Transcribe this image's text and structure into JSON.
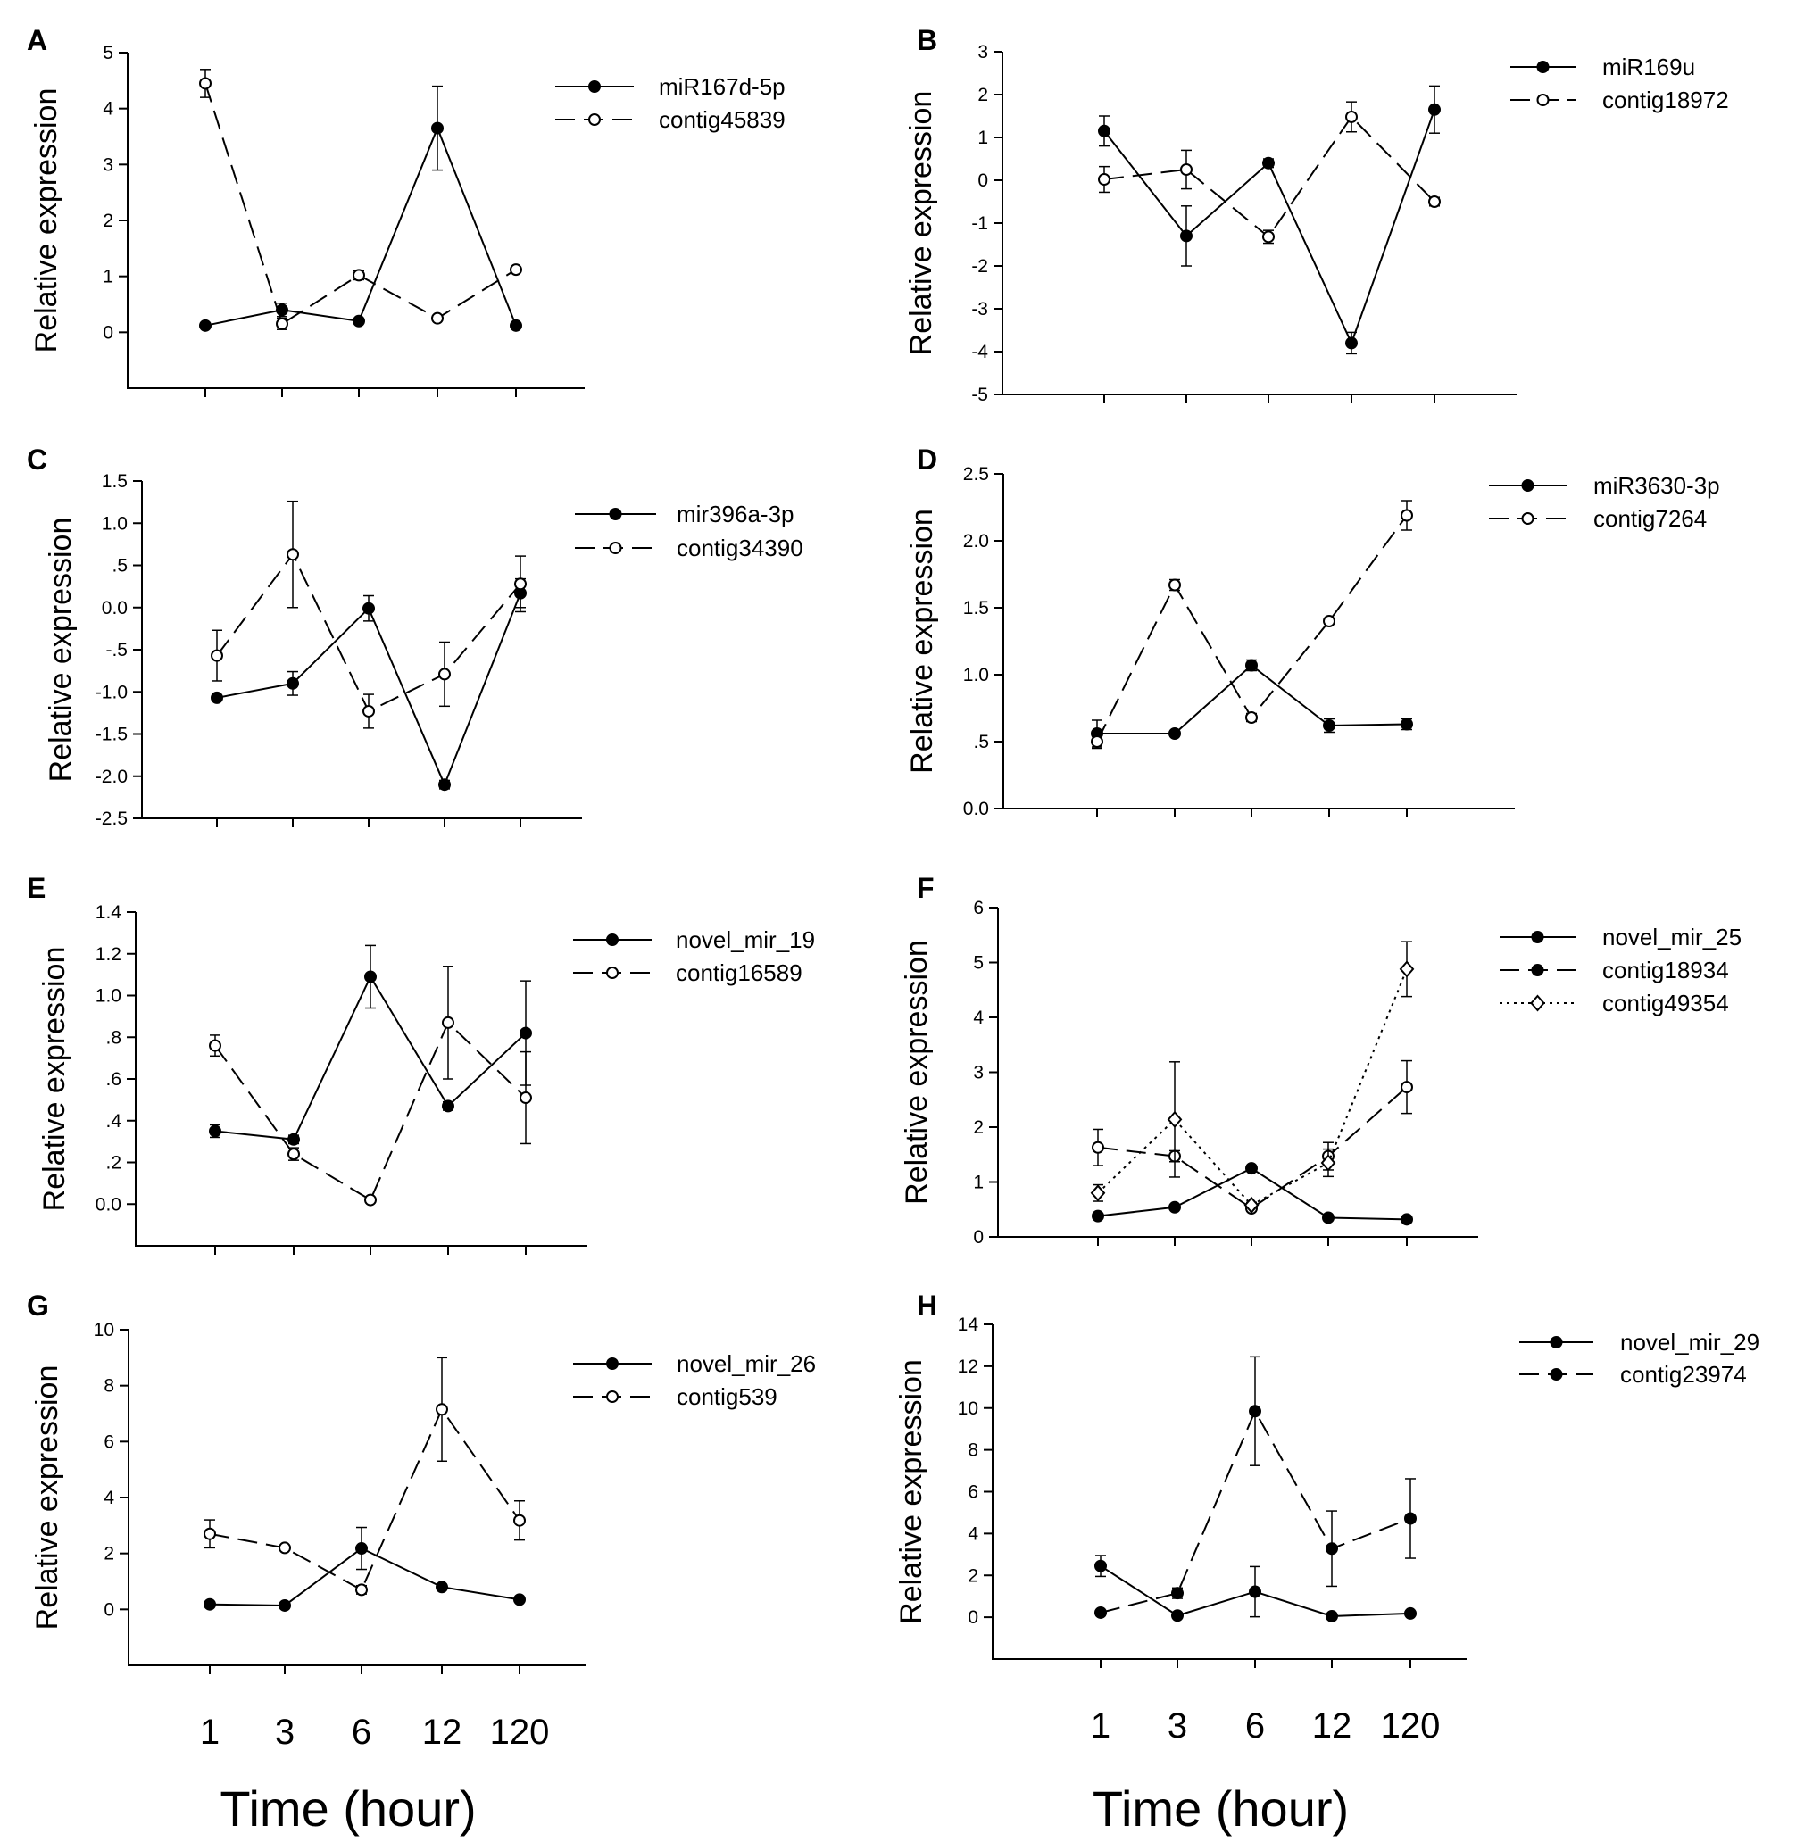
{
  "time_categories": [
    "1",
    "3",
    "6",
    "12",
    "120"
  ],
  "ylabel": "Relative expression",
  "xlabel": "Time (hour)",
  "colors": {
    "ink": "#000000",
    "background": "#ffffff"
  },
  "chart_data": [
    {
      "panel": "A",
      "type": "line",
      "categories": [
        "1",
        "3",
        "6",
        "12",
        "120"
      ],
      "ylabel": "Relative expression",
      "ylim": [
        -1,
        5
      ],
      "yticks": [
        0,
        1,
        2,
        3,
        4,
        5
      ],
      "ytick_labels": [
        "0",
        "1",
        "2",
        "3",
        "4",
        "5"
      ],
      "series": [
        {
          "name": "miR167d-5p",
          "line": "solid",
          "marker": "filled-circle",
          "values": [
            0.12,
            0.4,
            0.2,
            3.65,
            0.12
          ],
          "errors": [
            0,
            0.12,
            0,
            0.75,
            0
          ]
        },
        {
          "name": "contig45839",
          "line": "dashed",
          "marker": "open-circle",
          "values": [
            4.45,
            0.15,
            1.02,
            0.25,
            1.12
          ],
          "errors": [
            0.25,
            0.1,
            0.08,
            0,
            0
          ]
        }
      ]
    },
    {
      "panel": "B",
      "type": "line",
      "categories": [
        "1",
        "3",
        "6",
        "12",
        "120"
      ],
      "ylabel": "Relative expression",
      "ylim": [
        -5,
        3
      ],
      "yticks": [
        -5,
        -4,
        -3,
        -2,
        -1,
        0,
        1,
        2,
        3
      ],
      "ytick_labels": [
        "-5",
        "-4",
        "-3",
        "-2",
        "-1",
        "0",
        "1",
        "2",
        "3"
      ],
      "series": [
        {
          "name": "miR169u",
          "line": "solid",
          "marker": "filled-circle",
          "values": [
            1.15,
            -1.3,
            0.4,
            -3.8,
            1.65
          ],
          "errors": [
            0.35,
            0.7,
            0.1,
            0.25,
            0.55
          ]
        },
        {
          "name": "contig18972",
          "line": "dashed",
          "marker": "open-circle",
          "values": [
            0.02,
            0.25,
            -1.32,
            1.48,
            -0.5
          ],
          "errors": [
            0.3,
            0.45,
            0.15,
            0.35,
            0.1
          ]
        }
      ]
    },
    {
      "panel": "C",
      "type": "line",
      "categories": [
        "1",
        "3",
        "6",
        "12",
        "120"
      ],
      "ylabel": "Relative expression",
      "ylim": [
        -2.5,
        1.5
      ],
      "yticks": [
        -2.5,
        -2.0,
        -1.5,
        -1.0,
        -0.5,
        0.0,
        0.5,
        1.0,
        1.5
      ],
      "ytick_labels": [
        "-2.5",
        "-2.0",
        "-1.5",
        "-1.0",
        "-.5",
        "0.0",
        ".5",
        "1.0",
        "1.5"
      ],
      "series": [
        {
          "name": "mir396a-3p",
          "line": "solid",
          "marker": "filled-circle",
          "values": [
            -1.07,
            -0.9,
            -0.01,
            -2.1,
            0.17
          ],
          "errors": [
            0.03,
            0.14,
            0.15,
            0.05,
            0.17
          ]
        },
        {
          "name": "contig34390",
          "line": "dashed",
          "marker": "open-circle",
          "values": [
            -0.57,
            0.63,
            -1.23,
            -0.79,
            0.28
          ],
          "errors": [
            0.3,
            0.63,
            0.2,
            0.38,
            0.33
          ]
        }
      ]
    },
    {
      "panel": "D",
      "type": "line",
      "categories": [
        "1",
        "3",
        "6",
        "12",
        "120"
      ],
      "ylabel": "Relative expression",
      "ylim": [
        0,
        2.5
      ],
      "yticks": [
        0,
        0.5,
        1.0,
        1.5,
        2.0,
        2.5
      ],
      "ytick_labels": [
        "0.0",
        ".5",
        "1.0",
        "1.5",
        "2.0",
        "2.5"
      ],
      "series": [
        {
          "name": "miR3630-3p",
          "line": "solid",
          "marker": "filled-circle",
          "values": [
            0.56,
            0.56,
            1.07,
            0.62,
            0.63
          ],
          "errors": [
            0.1,
            0,
            0.04,
            0.05,
            0.04
          ]
        },
        {
          "name": "contig7264",
          "line": "dashed",
          "marker": "open-circle",
          "values": [
            0.5,
            1.67,
            0.68,
            1.4,
            2.19
          ],
          "errors": [
            0.05,
            0.04,
            0.03,
            0.02,
            0.11
          ]
        }
      ]
    },
    {
      "panel": "E",
      "type": "line",
      "categories": [
        "1",
        "3",
        "6",
        "12",
        "120"
      ],
      "ylabel": "Relative expression",
      "ylim": [
        -0.2,
        1.4
      ],
      "yticks": [
        0,
        0.2,
        0.4,
        0.6,
        0.8,
        1.0,
        1.2,
        1.4
      ],
      "ytick_labels": [
        "0.0",
        ".2",
        ".4",
        ".6",
        ".8",
        "1.0",
        "1.2",
        "1.4"
      ],
      "series": [
        {
          "name": "novel_mir_19",
          "line": "solid",
          "marker": "filled-circle",
          "values": [
            0.35,
            0.31,
            1.09,
            0.47,
            0.82
          ],
          "errors": [
            0.03,
            0.02,
            0.15,
            0.02,
            0.25
          ]
        },
        {
          "name": "contig16589",
          "line": "dashed",
          "marker": "open-circle",
          "values": [
            0.76,
            0.24,
            0.02,
            0.87,
            0.51
          ],
          "errors": [
            0.05,
            0.03,
            0,
            0.27,
            0.22
          ]
        }
      ]
    },
    {
      "panel": "F",
      "type": "line",
      "categories": [
        "1",
        "3",
        "6",
        "12",
        "120"
      ],
      "ylabel": "Relative expression",
      "ylim": [
        0,
        6
      ],
      "yticks": [
        0,
        1,
        2,
        3,
        4,
        5,
        6
      ],
      "ytick_labels": [
        "0",
        "1",
        "2",
        "3",
        "4",
        "5",
        "6"
      ],
      "series": [
        {
          "name": "novel_mir_25",
          "line": "solid",
          "marker": "filled-circle",
          "values": [
            0.38,
            0.54,
            1.25,
            0.35,
            0.32
          ],
          "errors": [
            0.03,
            0.03,
            0.05,
            0.03,
            0.03
          ]
        },
        {
          "name": "contig18934",
          "line": "dashed",
          "marker": "open-circle",
          "legend_marker": "filled-circle",
          "values": [
            1.63,
            1.47,
            0.52,
            1.47,
            2.73
          ],
          "errors": [
            0.33,
            0.1,
            0.05,
            0.25,
            0.48
          ]
        },
        {
          "name": "contig49354",
          "line": "dotted",
          "marker": "open-diamond",
          "values": [
            0.8,
            2.14,
            0.58,
            1.35,
            4.88
          ],
          "errors": [
            0.15,
            1.05,
            0.05,
            0.25,
            0.5
          ]
        }
      ]
    },
    {
      "panel": "G",
      "type": "line",
      "categories": [
        "1",
        "3",
        "6",
        "12",
        "120"
      ],
      "ylabel": "Relative expression",
      "ylim": [
        -2,
        10
      ],
      "yticks": [
        0,
        2,
        4,
        6,
        8,
        10
      ],
      "ytick_labels": [
        "0",
        "2",
        "4",
        "6",
        "8",
        "10"
      ],
      "series": [
        {
          "name": "novel_mir_26",
          "line": "solid",
          "marker": "filled-circle",
          "values": [
            0.18,
            0.14,
            2.18,
            0.8,
            0.35
          ],
          "errors": [
            0,
            0,
            0.75,
            0.1,
            0
          ]
        },
        {
          "name": "contig539",
          "line": "dashed",
          "marker": "open-circle",
          "values": [
            2.7,
            2.2,
            0.7,
            7.15,
            3.18
          ],
          "errors": [
            0.5,
            0,
            0.15,
            1.85,
            0.7
          ]
        }
      ]
    },
    {
      "panel": "H",
      "type": "line",
      "categories": [
        "1",
        "3",
        "6",
        "12",
        "120"
      ],
      "ylabel": "Relative expression",
      "ylim": [
        -2,
        14
      ],
      "yticks": [
        0,
        2,
        4,
        6,
        8,
        10,
        12,
        14
      ],
      "ytick_labels": [
        "0",
        "2",
        "4",
        "6",
        "8",
        "10",
        "12",
        "14"
      ],
      "series": [
        {
          "name": "novel_mir_29",
          "line": "solid",
          "marker": "filled-circle",
          "values": [
            2.45,
            0.08,
            1.22,
            0.05,
            0.18
          ],
          "errors": [
            0.5,
            0,
            1.2,
            0,
            0
          ]
        },
        {
          "name": "contig23974",
          "line": "dashed",
          "marker": "filled-circle",
          "values": [
            0.22,
            1.15,
            9.85,
            3.28,
            4.72
          ],
          "errors": [
            0,
            0.25,
            2.6,
            1.8,
            1.9
          ]
        }
      ]
    }
  ]
}
